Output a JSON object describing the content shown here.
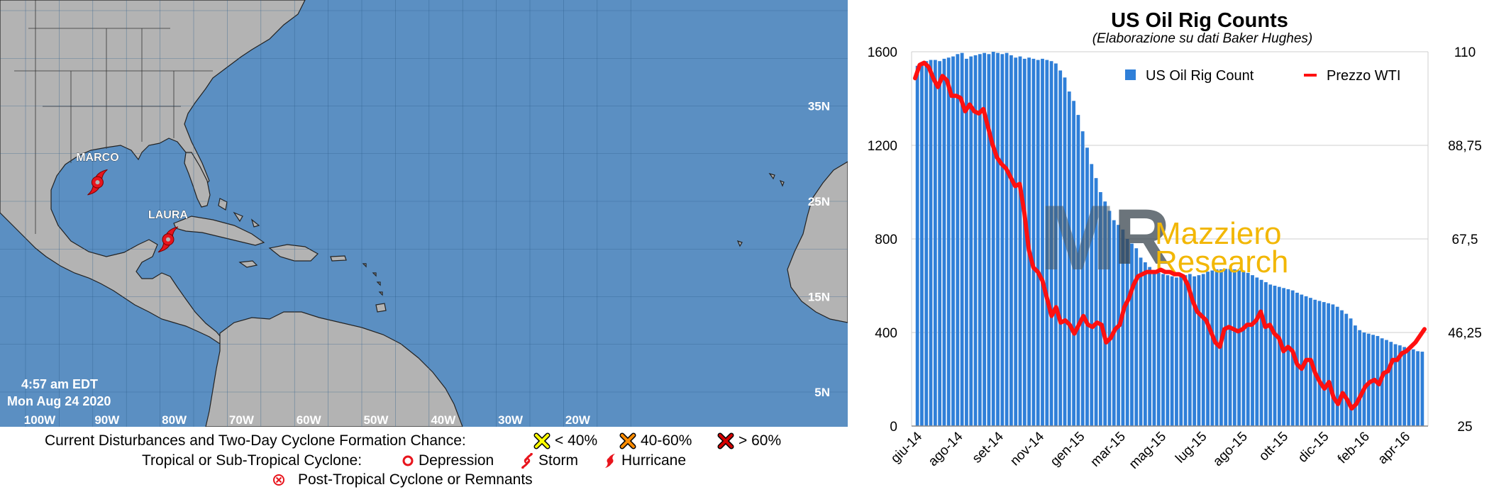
{
  "map": {
    "timestamp_line1": "4:57 am EDT",
    "timestamp_line2": "Mon Aug 24 2020",
    "storms": [
      {
        "name": "MARCO",
        "lon": -89.3,
        "lat": 27.0
      },
      {
        "name": "LAURA",
        "lon": -78.8,
        "lat": 21.0
      }
    ],
    "lat_labels": [
      {
        "label": "35N",
        "lat": 35
      },
      {
        "label": "25N",
        "lat": 25
      },
      {
        "label": "15N",
        "lat": 15
      },
      {
        "label": "5N",
        "lat": 5
      }
    ],
    "lon_labels": [
      {
        "label": "100W",
        "lon": -100
      },
      {
        "label": "90W",
        "lon": -90
      },
      {
        "label": "80W",
        "lon": -80
      },
      {
        "label": "70W",
        "lon": -70
      },
      {
        "label": "60W",
        "lon": -60
      },
      {
        "label": "50W",
        "lon": -50
      },
      {
        "label": "40W",
        "lon": -40
      },
      {
        "label": "30W",
        "lon": -30
      },
      {
        "label": "20W",
        "lon": -20
      }
    ],
    "colors": {
      "ocean": "#5b8fc2",
      "land": "#b3b3b3",
      "storm": "#e8141c"
    },
    "legend": {
      "row1_label": "Current Disturbances and Two-Day Cyclone Formation Chance:",
      "chance_low": "< 40%",
      "chance_mid": "40-60%",
      "chance_high": "> 60%",
      "chance_colors": [
        "#ffff00",
        "#ff8c00",
        "#d40000"
      ],
      "row2_label": "Tropical or Sub-Tropical Cyclone:",
      "depression": "Depression",
      "storm": "Storm",
      "hurricane": "Hurricane",
      "row3_label": "Post-Tropical Cyclone or Remnants"
    }
  },
  "chart_data": {
    "type": "bar",
    "title": "US Oil Rig Counts",
    "subtitle": "(Elaborazione su dati Baker Hughes)",
    "left_axis": {
      "min": 0,
      "max": 1600,
      "ticks": [
        "0",
        "400",
        "800",
        "1200",
        "1600"
      ]
    },
    "right_axis": {
      "min": 25,
      "max": 110,
      "ticks": [
        "25",
        "46,25",
        "67,5",
        "88,75",
        "110"
      ]
    },
    "x_tick_labels": [
      "giu-14",
      "ago-14",
      "set-14",
      "nov-14",
      "gen-15",
      "mar-15",
      "mag-15",
      "lug-15",
      "ago-15",
      "ott-15",
      "dic-15",
      "feb-16",
      "apr-16"
    ],
    "legend_position": "top-right",
    "grid": true,
    "watermark": {
      "line1": "Mazziero",
      "line2": "Research"
    },
    "series": [
      {
        "name": "US Oil Rig Count",
        "type": "bar",
        "color": "#2f7fd8",
        "values": [
          1540,
          1555,
          1560,
          1565,
          1565,
          1560,
          1570,
          1575,
          1580,
          1590,
          1595,
          1570,
          1580,
          1585,
          1590,
          1595,
          1590,
          1600,
          1595,
          1590,
          1595,
          1585,
          1575,
          1580,
          1570,
          1575,
          1570,
          1565,
          1570,
          1565,
          1560,
          1550,
          1520,
          1490,
          1430,
          1390,
          1330,
          1260,
          1190,
          1120,
          1060,
          1000,
          960,
          920,
          880,
          860,
          840,
          800,
          780,
          760,
          720,
          700,
          680,
          665,
          655,
          650,
          645,
          640,
          635,
          640,
          645,
          650,
          640,
          645,
          650,
          660,
          665,
          670,
          670,
          672,
          672,
          670,
          665,
          660,
          655,
          645,
          635,
          625,
          615,
          605,
          600,
          595,
          590,
          585,
          580,
          570,
          562,
          555,
          548,
          540,
          535,
          530,
          525,
          520,
          510,
          495,
          480,
          460,
          430,
          410,
          400,
          395,
          390,
          385,
          375,
          368,
          360,
          350,
          345,
          338,
          332,
          328,
          320,
          318
        ]
      },
      {
        "name": "Prezzo WTI",
        "type": "line",
        "axis": "right",
        "color": "#ff1010",
        "values": [
          104,
          107,
          107.5,
          106.5,
          104,
          102,
          104.5,
          103.5,
          100,
          100,
          99.5,
          96.5,
          98,
          96.5,
          96,
          97,
          93,
          89,
          86,
          84.5,
          83.5,
          81.5,
          79.5,
          80,
          73.5,
          65,
          61,
          60,
          58,
          54,
          50,
          52,
          48.5,
          49,
          48,
          46,
          48,
          50,
          48,
          47.5,
          48.5,
          48,
          44,
          45,
          47,
          48,
          52,
          54,
          57,
          59,
          59.5,
          60,
          60,
          60,
          60.5,
          60,
          60,
          59.5,
          59.5,
          59,
          57,
          53.5,
          51,
          50,
          49,
          46.5,
          44,
          43,
          47,
          47.5,
          47,
          46.5,
          47,
          48,
          48,
          49,
          51,
          47.5,
          48,
          46,
          45,
          42,
          43,
          42,
          39,
          38,
          40,
          40,
          37,
          35,
          33.5,
          35,
          31.5,
          30,
          32.5,
          31,
          29,
          30,
          32,
          34,
          35,
          35.5,
          34.5,
          37,
          37.5,
          40,
          40,
          41.5,
          42,
          43,
          44,
          45.5,
          47
        ]
      }
    ]
  }
}
